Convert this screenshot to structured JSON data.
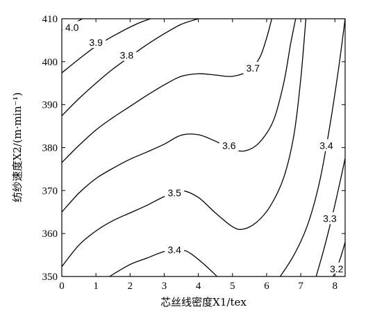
{
  "chart_data": {
    "type": "contour",
    "xlabel": "芯丝线密度X1/tex",
    "ylabel": "纺纱速度X2/(m·min⁻¹)",
    "xlim": [
      0,
      8.3
    ],
    "ylim": [
      350,
      410
    ],
    "xticks": [
      0,
      1,
      2,
      3,
      4,
      5,
      6,
      7,
      8
    ],
    "yticks": [
      350,
      360,
      370,
      380,
      390,
      400,
      410
    ],
    "grid": false,
    "levels": [
      {
        "value": 4.0,
        "label": "4.0",
        "label_at": [
          0.3,
          408
        ],
        "points": [
          [
            0.0,
            407.4
          ],
          [
            0.6,
            410.0
          ]
        ]
      },
      {
        "value": 3.9,
        "label": "3.9",
        "label_at": [
          1.0,
          404.5
        ],
        "points": [
          [
            0.0,
            397.4
          ],
          [
            0.5,
            400.6
          ],
          [
            1.0,
            403.6
          ],
          [
            1.6,
            406.4
          ],
          [
            2.2,
            408.8
          ],
          [
            2.6,
            410.0
          ]
        ]
      },
      {
        "value": 3.8,
        "label": "3.8",
        "label_at": [
          1.9,
          401.5
        ],
        "points": [
          [
            0.0,
            387.4
          ],
          [
            0.5,
            391.4
          ],
          [
            1.0,
            395.0
          ],
          [
            1.5,
            398.3
          ],
          [
            2.0,
            401.2
          ],
          [
            2.5,
            404.0
          ],
          [
            3.0,
            406.5
          ],
          [
            3.5,
            408.7
          ],
          [
            4.0,
            410.0
          ]
        ]
      },
      {
        "value": 3.7,
        "label": "3.7",
        "label_at": [
          5.6,
          398.5
        ],
        "points": [
          [
            0.0,
            376.5
          ],
          [
            0.5,
            380.5
          ],
          [
            1.0,
            384.1
          ],
          [
            1.5,
            387.0
          ],
          [
            2.0,
            389.6
          ],
          [
            2.5,
            392.2
          ],
          [
            3.0,
            394.6
          ],
          [
            3.5,
            396.6
          ],
          [
            4.0,
            397.2
          ],
          [
            4.5,
            396.9
          ],
          [
            5.0,
            396.6
          ],
          [
            5.5,
            398.0
          ],
          [
            5.8,
            401.0
          ],
          [
            6.0,
            405.5
          ],
          [
            6.15,
            410.0
          ]
        ]
      },
      {
        "value": 3.6,
        "label": "3.6",
        "label_at": [
          4.9,
          380.5
        ],
        "points": [
          [
            0.0,
            365.0
          ],
          [
            0.5,
            369.4
          ],
          [
            1.0,
            372.8
          ],
          [
            1.5,
            375.2
          ],
          [
            2.0,
            377.3
          ],
          [
            2.5,
            379.0
          ],
          [
            3.0,
            380.8
          ],
          [
            3.5,
            382.9
          ],
          [
            4.0,
            383.0
          ],
          [
            4.5,
            381.5
          ],
          [
            5.0,
            379.6
          ],
          [
            5.4,
            379.3
          ],
          [
            5.8,
            381.3
          ],
          [
            6.2,
            386.3
          ],
          [
            6.5,
            395.0
          ],
          [
            6.7,
            404.0
          ],
          [
            6.85,
            410.0
          ]
        ]
      },
      {
        "value": 3.5,
        "label": "3.5",
        "label_at": [
          3.3,
          369.5
        ],
        "points": [
          [
            0.0,
            352.3
          ],
          [
            0.5,
            357.3
          ],
          [
            1.0,
            360.6
          ],
          [
            1.5,
            363.0
          ],
          [
            2.0,
            364.8
          ],
          [
            2.5,
            366.6
          ],
          [
            3.0,
            368.6
          ],
          [
            3.5,
            370.0
          ],
          [
            4.0,
            368.4
          ],
          [
            4.5,
            364.8
          ],
          [
            5.0,
            361.6
          ],
          [
            5.3,
            361.0
          ],
          [
            5.7,
            362.6
          ],
          [
            6.1,
            366.3
          ],
          [
            6.5,
            373.0
          ],
          [
            6.8,
            383.0
          ],
          [
            7.0,
            396.0
          ],
          [
            7.15,
            410.0
          ]
        ]
      },
      {
        "value": 3.4,
        "label": "3.4",
        "label_at": [
          3.3,
          356.2
        ],
        "points": [
          [
            1.4,
            350.0
          ],
          [
            2.0,
            352.8
          ],
          [
            2.5,
            354.3
          ],
          [
            3.0,
            355.8
          ],
          [
            3.5,
            356.2
          ],
          [
            3.8,
            355.2
          ],
          [
            4.2,
            352.6
          ],
          [
            4.55,
            350.0
          ]
        ]
      },
      {
        "value": 3.4,
        "label": "3.4",
        "label_at": [
          7.75,
          380.5
        ],
        "points": [
          [
            6.4,
            350.0
          ],
          [
            6.8,
            355.0
          ],
          [
            7.2,
            362.0
          ],
          [
            7.55,
            372.0
          ],
          [
            7.85,
            385.0
          ],
          [
            8.1,
            398.0
          ],
          [
            8.3,
            410.0
          ]
        ]
      },
      {
        "value": 3.3,
        "label": "3.3",
        "label_at": [
          7.85,
          363.5
        ],
        "points": [
          [
            7.45,
            350.0
          ],
          [
            7.7,
            357.0
          ],
          [
            7.95,
            365.0
          ],
          [
            8.15,
            372.0
          ],
          [
            8.3,
            377.5
          ]
        ]
      },
      {
        "value": 3.2,
        "label": "3.2",
        "label_at": [
          8.05,
          351.8
        ],
        "points": [
          [
            7.95,
            350.0
          ],
          [
            8.15,
            354.0
          ],
          [
            8.3,
            358.0
          ]
        ]
      }
    ]
  }
}
